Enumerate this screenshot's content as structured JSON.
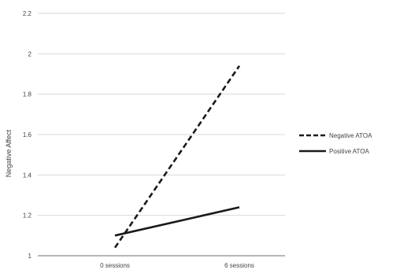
{
  "chart_data": {
    "type": "line",
    "categories": [
      "0 sessions",
      "6 sessions"
    ],
    "ylabel": "Negative Affect",
    "xlabel": "",
    "ylim": [
      1,
      2.2
    ],
    "yticks": [
      "1",
      "1.2",
      "1.4",
      "1.6",
      "1.8",
      "2",
      "2.2"
    ],
    "grid": true,
    "legend_position": "right",
    "series": [
      {
        "name": "Negative ATOA",
        "values": [
          1.04,
          1.94
        ],
        "style": "dashed",
        "color": "#1a1a1a"
      },
      {
        "name": "Positive ATOA",
        "values": [
          1.1,
          1.24
        ],
        "style": "solid",
        "color": "#1a1a1a"
      }
    ]
  }
}
